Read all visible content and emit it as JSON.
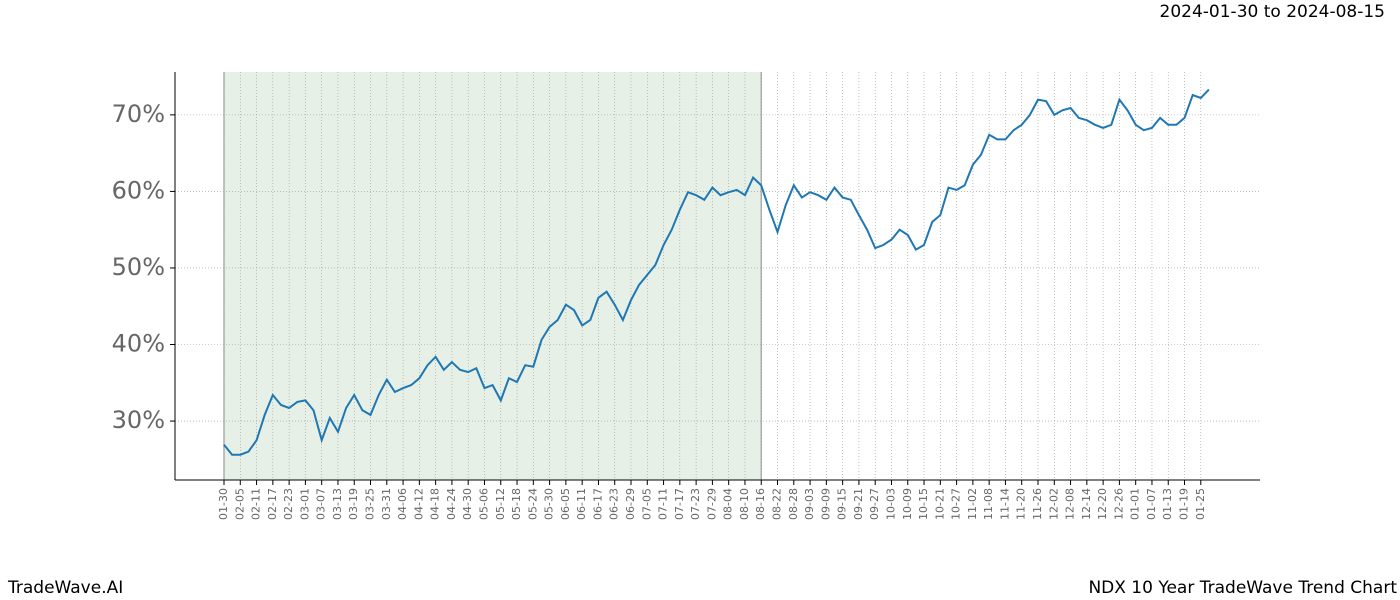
{
  "chart_data": {
    "type": "line",
    "title": "NDX 10 Year TradeWave Trend Chart",
    "subtitle": "2024-01-30 to 2024-08-15",
    "brand": "TradeWave.AI",
    "categories": [
      "01-30",
      null,
      "02-05",
      null,
      "02-11",
      null,
      "02-17",
      null,
      "02-23",
      null,
      "03-01",
      null,
      "03-07",
      null,
      "03-13",
      null,
      "03-19",
      null,
      "03-25",
      null,
      "03-31",
      null,
      "04-06",
      null,
      "04-12",
      null,
      "04-18",
      null,
      "04-24",
      null,
      "04-30",
      null,
      "05-06",
      null,
      "05-12",
      null,
      "05-18",
      null,
      "05-24",
      null,
      "05-30",
      null,
      "06-05",
      null,
      "06-11",
      null,
      "06-17",
      null,
      "06-23",
      null,
      "06-29",
      null,
      "07-05",
      null,
      "07-11",
      null,
      "07-17",
      null,
      "07-23",
      null,
      "07-29",
      null,
      "08-04",
      null,
      "08-10",
      null,
      "08-16",
      null,
      "08-22",
      null,
      "08-28",
      null,
      "09-03",
      null,
      "09-09",
      null,
      "09-15",
      null,
      "09-21",
      null,
      "09-27",
      null,
      "10-03",
      null,
      "10-09",
      null,
      "10-15",
      null,
      "10-21",
      null,
      "10-27",
      null,
      "11-02",
      null,
      "11-08",
      null,
      "11-14",
      null,
      "11-20",
      null,
      "11-26",
      null,
      "12-02",
      null,
      "12-08",
      null,
      "12-14",
      null,
      "12-20",
      null,
      "12-26",
      null,
      "01-01",
      null,
      "01-07",
      null,
      "01-13",
      null,
      "01-19",
      null,
      "01-25",
      null
    ],
    "series": [
      {
        "name": "NDX",
        "color": "#1f77b4",
        "values": [
          26.9,
          25.6,
          25.6,
          26.0,
          27.5,
          30.8,
          33.4,
          32.1,
          31.7,
          32.5,
          32.7,
          31.4,
          27.5,
          30.4,
          28.6,
          31.7,
          33.4,
          31.4,
          30.8,
          33.4,
          35.4,
          33.8,
          34.3,
          34.7,
          35.6,
          37.3,
          38.4,
          36.7,
          37.7,
          36.7,
          36.4,
          36.9,
          34.3,
          34.7,
          32.7,
          35.6,
          35.1,
          37.3,
          37.1,
          40.6,
          42.3,
          43.2,
          45.2,
          44.5,
          42.5,
          43.2,
          46.1,
          46.9,
          45.2,
          43.2,
          45.8,
          47.8,
          49.1,
          50.4,
          53.0,
          55.0,
          57.6,
          59.9,
          59.5,
          58.9,
          60.5,
          59.5,
          59.9,
          60.2,
          59.5,
          61.8,
          60.8,
          57.6,
          54.7,
          58.2,
          60.8,
          59.2,
          59.9,
          59.5,
          58.9,
          60.5,
          59.2,
          58.9,
          56.9,
          55.0,
          52.6,
          53.0,
          53.7,
          55.0,
          54.3,
          52.4,
          53.0,
          56.0,
          56.9,
          60.5,
          60.2,
          60.8,
          63.5,
          64.8,
          67.4,
          66.8,
          66.8,
          68.0,
          68.7,
          70.0,
          72.0,
          71.8,
          70.0,
          70.6,
          70.9,
          69.6,
          69.3,
          68.7,
          68.3,
          68.7,
          72.0,
          70.6,
          68.7,
          68.0,
          68.3,
          69.6,
          68.7,
          68.7,
          69.6,
          72.6,
          72.2,
          73.3
        ]
      }
    ],
    "ylim": [
      22.3,
      75.6
    ],
    "yticks": [
      {
        "value": 30,
        "label": "30%"
      },
      {
        "value": 40,
        "label": "40%"
      },
      {
        "value": 50,
        "label": "50%"
      },
      {
        "value": 60,
        "label": "60%"
      },
      {
        "value": 70,
        "label": "70%"
      }
    ],
    "grid": true,
    "shade": {
      "from": "01-30",
      "to": "08-16",
      "color": "#e6f0e6",
      "edge": "#b0b0b0"
    }
  }
}
